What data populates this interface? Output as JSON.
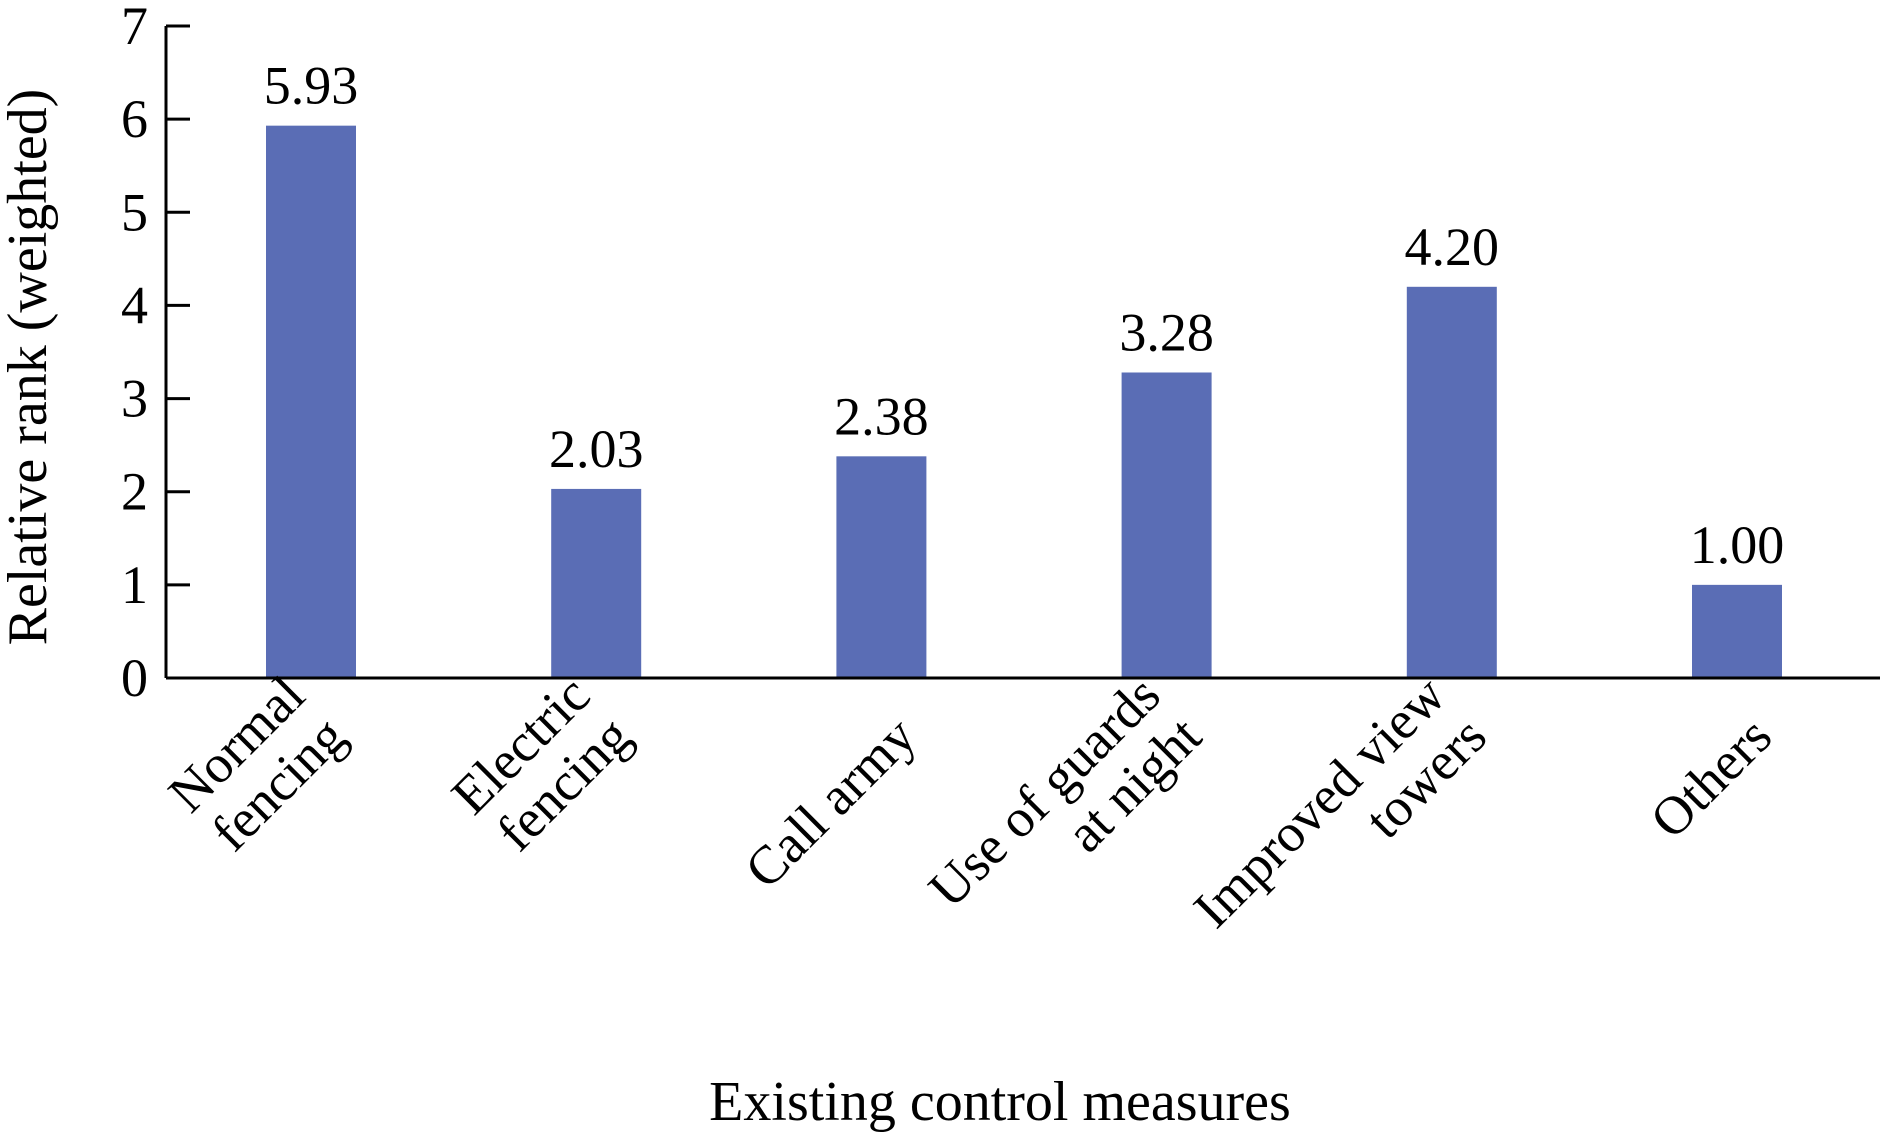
{
  "chart_data": {
    "type": "bar",
    "title": "",
    "xlabel": "Existing control measures",
    "ylabel": "Relative rank (weighted)",
    "ylim": [
      0,
      7
    ],
    "yticks": [
      "0",
      "1",
      "2",
      "3",
      "4",
      "5",
      "6",
      "7"
    ],
    "grid": false,
    "legend": "none",
    "bar_color": "#5a6db5",
    "categories": [
      [
        "Normal",
        "fencing"
      ],
      [
        "Electric",
        "fencing"
      ],
      [
        "Call army"
      ],
      [
        "Use of guards",
        "at night"
      ],
      [
        "Improved view",
        "towers"
      ],
      [
        "Others"
      ]
    ],
    "values": [
      5.93,
      2.03,
      2.38,
      3.28,
      4.2,
      1.0
    ],
    "data_labels": [
      "5.93",
      "2.03",
      "2.38",
      "3.28",
      "4.20",
      "1.00"
    ]
  }
}
